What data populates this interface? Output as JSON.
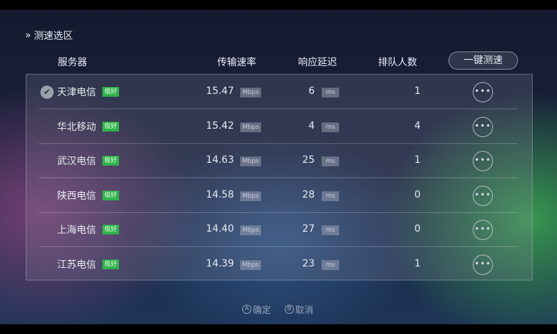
{
  "title": "测速选区",
  "headers": {
    "server": "服务器",
    "speed": "传输速率",
    "latency": "响应延迟",
    "queue": "排队人数"
  },
  "speed_test_button": "一键测速",
  "speed_unit": "Mbps",
  "latency_unit": "ms",
  "rows": [
    {
      "name": "天津电信",
      "badge": "极好",
      "speed": "15.47",
      "latency": "6",
      "queue": "1",
      "selected": true
    },
    {
      "name": "华北移动",
      "badge": "极好",
      "speed": "15.42",
      "latency": "4",
      "queue": "4"
    },
    {
      "name": "武汉电信",
      "badge": "极好",
      "speed": "14.63",
      "latency": "25",
      "queue": "1"
    },
    {
      "name": "陕西电信",
      "badge": "极好",
      "speed": "14.58",
      "latency": "28",
      "queue": "0"
    },
    {
      "name": "上海电信",
      "badge": "极好",
      "speed": "14.40",
      "latency": "27",
      "queue": "0"
    },
    {
      "name": "江苏电信",
      "badge": "极好",
      "speed": "14.39",
      "latency": "23",
      "queue": "1"
    }
  ],
  "footer": {
    "confirm_key": "A",
    "confirm": "确定",
    "cancel_key": "B",
    "cancel": "取消"
  },
  "colors": {
    "badge": "#2fb34a"
  }
}
